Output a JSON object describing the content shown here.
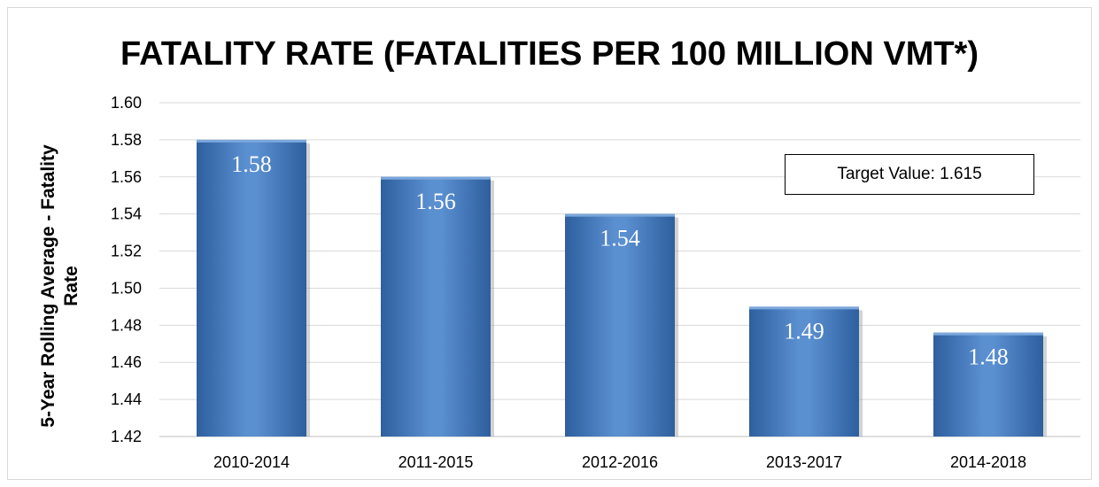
{
  "chart_data": {
    "type": "bar",
    "title": "FATALITY RATE (FATALITIES PER 100 MILLION VMT*)",
    "ylabel": "5-Year Rolling Average - Fatality Rate",
    "categories": [
      "2010-2014",
      "2011-2015",
      "2012-2016",
      "2013-2017",
      "2014-2018"
    ],
    "values": [
      1.58,
      1.56,
      1.54,
      1.49,
      1.476
    ],
    "data_labels": [
      "1.58",
      "1.56",
      "1.54",
      "1.49",
      "1.48"
    ],
    "ylim": [
      1.42,
      1.6
    ],
    "yticks": [
      "1.42",
      "1.44",
      "1.46",
      "1.48",
      "1.50",
      "1.52",
      "1.54",
      "1.56",
      "1.58",
      "1.60"
    ],
    "grid": true,
    "bar_color": "#4f81bd",
    "annotation": "Target Value: 1.615"
  }
}
